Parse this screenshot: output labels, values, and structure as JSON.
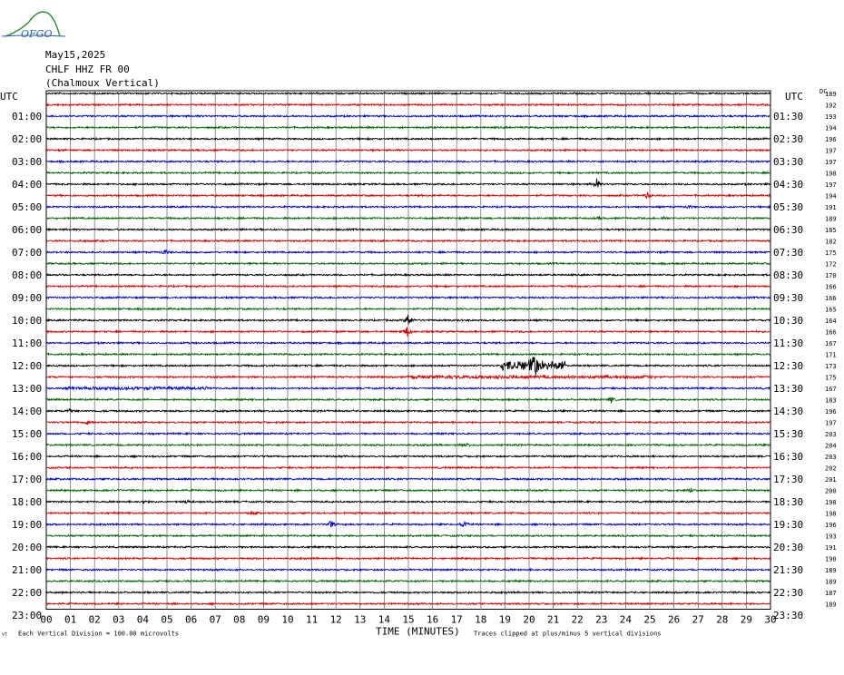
{
  "logo": {
    "text": "OFGO",
    "colors": {
      "mountain": "#2e8b2e",
      "text": "#2a5fa8"
    }
  },
  "header": {
    "date": "May15,2025",
    "station": "CHLF HHZ FR 00",
    "location": "(Chalmoux Vertical)"
  },
  "axis": {
    "left_title": "UTC",
    "right_title": "UTC",
    "dc_title": "DC",
    "x_title": "TIME (MINUTES)",
    "footer_left": "Each Vertical Division =  100.00 microvolts",
    "footer_right": "Traces clipped at plus/minus 5 vertical divisions",
    "corner_mark": "vt"
  },
  "chart_data": {
    "type": "line",
    "title": "CHLF HHZ FR 00 (Chalmoux Vertical)",
    "xlabel": "TIME (MINUTES)",
    "ylabel": "UTC",
    "xlim": [
      0,
      30
    ],
    "x_ticks": [
      "00",
      "01",
      "02",
      "03",
      "04",
      "05",
      "06",
      "07",
      "08",
      "09",
      "10",
      "11",
      "12",
      "13",
      "14",
      "15",
      "16",
      "17",
      "18",
      "19",
      "20",
      "21",
      "22",
      "23",
      "24",
      "25",
      "26",
      "27",
      "28",
      "29",
      "30"
    ],
    "left_labels": [
      "01:00",
      "02:00",
      "03:00",
      "04:00",
      "05:00",
      "06:00",
      "07:00",
      "08:00",
      "09:00",
      "10:00",
      "11:00",
      "12:00",
      "13:00",
      "14:00",
      "15:00",
      "16:00",
      "17:00",
      "18:00",
      "19:00",
      "20:00",
      "21:00",
      "22:00",
      "23:00"
    ],
    "right_labels": [
      "01:30",
      "02:30",
      "03:30",
      "04:30",
      "05:30",
      "06:30",
      "07:30",
      "08:30",
      "09:30",
      "10:30",
      "11:30",
      "12:30",
      "13:30",
      "14:30",
      "15:30",
      "16:30",
      "17:30",
      "18:30",
      "19:30",
      "20:30",
      "21:30",
      "22:30",
      "23:30"
    ],
    "dc_values": [
      "189",
      "192",
      "193",
      "194",
      "196",
      "197",
      "197",
      "198",
      "197",
      "194",
      "191",
      "189",
      "185",
      "182",
      "175",
      "172",
      "170",
      "166",
      "166",
      "165",
      "164",
      "166",
      "167",
      "171",
      "173",
      "175",
      "167",
      "183",
      "196",
      "197",
      "203",
      "204",
      "203",
      "202",
      "201",
      "200",
      "198",
      "198",
      "196",
      "193",
      "191",
      "190",
      "189",
      "189",
      "187",
      "189"
    ],
    "trace_colors": [
      "#000000",
      "#d40000",
      "#0000d0",
      "#006400"
    ],
    "grid": true,
    "events": [
      {
        "row": 8,
        "minute": 22.8,
        "amplitude": 1.2
      },
      {
        "row": 9,
        "minute": 24.9,
        "amplitude": 0.6
      },
      {
        "row": 10,
        "minute": 26.6,
        "amplitude": 0.3
      },
      {
        "row": 11,
        "minute": 22.9,
        "amplitude": 0.25
      },
      {
        "row": 11,
        "minute": 25.6,
        "amplitude": 0.35
      },
      {
        "row": 13,
        "minute": 1.4,
        "amplitude": 0.2
      },
      {
        "row": 14,
        "minute": 4.9,
        "amplitude": 0.6
      },
      {
        "row": 20,
        "minute": 15.0,
        "amplitude": 1.6
      },
      {
        "row": 21,
        "minute": 14.95,
        "amplitude": 1.2
      },
      {
        "row": 24,
        "minute": 20.2,
        "amplitude": 3.3
      },
      {
        "row": 25,
        "minute": 15.1,
        "amplitude": 0.5
      },
      {
        "row": 26,
        "minute": 1.0,
        "amplitude": 0.2
      },
      {
        "row": 27,
        "minute": 23.4,
        "amplitude": 0.6
      },
      {
        "row": 28,
        "minute": 1.0,
        "amplitude": 0.5
      },
      {
        "row": 29,
        "minute": 1.7,
        "amplitude": 0.5
      },
      {
        "row": 31,
        "minute": 17.4,
        "amplitude": 0.5
      },
      {
        "row": 35,
        "minute": 26.7,
        "amplitude": 0.5
      },
      {
        "row": 36,
        "minute": 4.0,
        "amplitude": 0.25
      },
      {
        "row": 36,
        "minute": 5.8,
        "amplitude": 0.35
      },
      {
        "row": 37,
        "minute": 8.6,
        "amplitude": 0.3
      },
      {
        "row": 38,
        "minute": 11.8,
        "amplitude": 0.8
      },
      {
        "row": 38,
        "minute": 17.3,
        "amplitude": 0.7
      }
    ],
    "noisy_segments": [
      {
        "row": 24,
        "from_minute": 18.8,
        "to_minute": 21.5,
        "amplitude": 0.9
      },
      {
        "row": 25,
        "from_minute": 15.2,
        "to_minute": 25.3,
        "amplitude": 0.2
      },
      {
        "row": 26,
        "from_minute": 0.8,
        "to_minute": 6.8,
        "amplitude": 0.18
      }
    ]
  }
}
